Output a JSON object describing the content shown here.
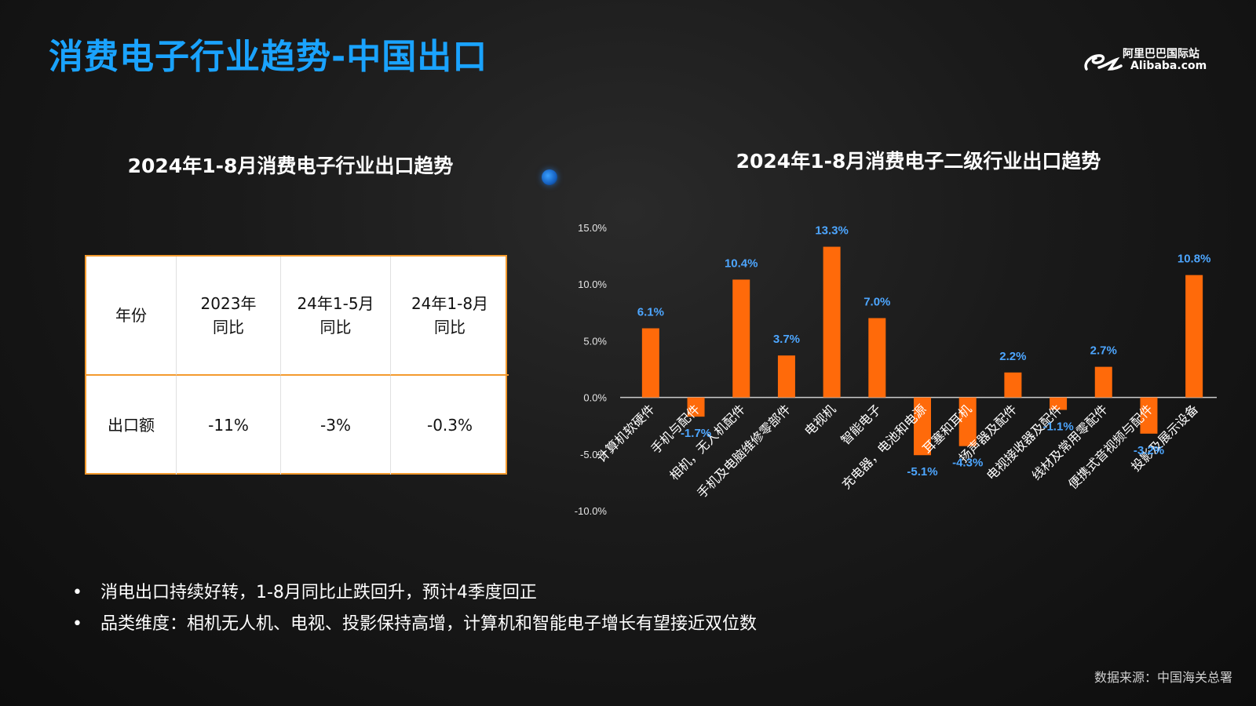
{
  "slide": {
    "title": "消费电子行业趋势-中国出口",
    "logo": {
      "cn": "阿里巴巴国际站",
      "en": "Alibaba.com"
    },
    "source": "数据来源：中国海关总署"
  },
  "table_section": {
    "title": "2024年1-8月消费电子行业出口趋势",
    "headers": [
      "年份",
      "2023年\n同比",
      "24年1-5月\n同比",
      "24年1-8月\n同比"
    ],
    "row": [
      "出口额",
      "-11%",
      "-3%",
      "-0.3%"
    ]
  },
  "chart_section": {
    "title": "2024年1-8月消费电子二级行业出口趋势"
  },
  "bullets": [
    "消电出口持续好转，1-8月同比止跌回升，预计4季度回正",
    "品类维度：相机无人机、电视、投影保持高增，计算机和智能电子增长有望接近双位数"
  ],
  "chart_data": {
    "type": "bar",
    "title": "2024年1-8月消费电子二级行业出口趋势",
    "categories": [
      "计算机软硬件",
      "手机与配件",
      "相机，无人机配件",
      "手机及电脑维修零部件",
      "电视机",
      "智能电子",
      "充电器，电池和电源",
      "耳塞和耳机",
      "扬声器及配件",
      "电视接收器及配件",
      "线材及常用零配件",
      "便携式音视频与配件",
      "投影及展示设备"
    ],
    "values": [
      6.1,
      -1.7,
      10.4,
      3.7,
      13.3,
      7.0,
      -5.1,
      -4.3,
      2.2,
      -1.1,
      2.7,
      -3.2,
      10.8
    ],
    "value_labels": [
      "6.1%",
      "-1.7%",
      "10.4%",
      "3.7%",
      "13.3%",
      "7.0%",
      "-5.1%",
      "-4.3%",
      "2.2%",
      "-1.1%",
      "2.7%",
      "-3.2%",
      "10.8%"
    ],
    "yticks": [
      "15.0%",
      "10.0%",
      "5.0%",
      "0.0%",
      "-5.0%",
      "-10.0%"
    ],
    "ylim": [
      -10,
      15
    ],
    "bar_color": "#ff6a0a",
    "label_color": "#4da6ff",
    "xlabel": "",
    "ylabel": ""
  }
}
